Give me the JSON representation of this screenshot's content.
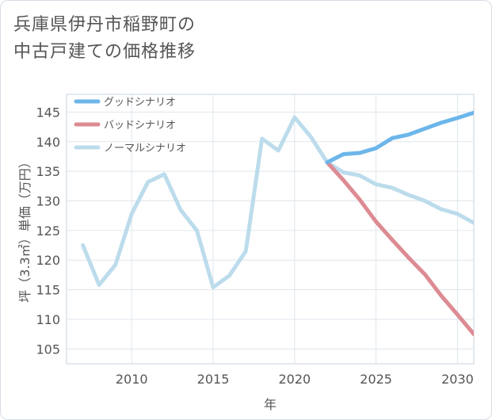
{
  "page": {
    "title_lines": [
      "兵庫県伊丹市稲野町の",
      "中古戸建ての価格推移"
    ]
  },
  "chart_data": {
    "type": "line",
    "title": "兵庫県伊丹市稲野町の中古戸建ての価格推移",
    "xlabel": "年",
    "ylabel": "坪（3.3㎡）単価（万円）",
    "xlim": [
      2006,
      2031
    ],
    "ylim": [
      102.5,
      148
    ],
    "x_ticks": [
      2010,
      2015,
      2020,
      2025,
      2030
    ],
    "y_ticks": [
      105,
      110,
      115,
      120,
      125,
      130,
      135,
      140,
      145
    ],
    "legend_position": "top-left",
    "series": [
      {
        "name": "ノーマルシナリオ",
        "color": "#bcdcec",
        "x": [
          2007,
          2008,
          2009,
          2010,
          2011,
          2012,
          2013,
          2014,
          2015,
          2016,
          2017,
          2018,
          2019,
          2020,
          2021,
          2022,
          2023,
          2024,
          2025,
          2026,
          2027,
          2028,
          2029,
          2030,
          2031
        ],
        "values": [
          122.5,
          115.8,
          119.2,
          127.8,
          133.2,
          134.5,
          128.5,
          125.0,
          115.4,
          117.4,
          121.5,
          140.5,
          138.5,
          144.1,
          140.8,
          136.5,
          134.8,
          134.3,
          132.8,
          132.2,
          131.0,
          130.0,
          128.6,
          127.8,
          126.3
        ]
      },
      {
        "name": "バッドシナリオ",
        "color": "#dd8b93",
        "x": [
          2022,
          2023,
          2024,
          2025,
          2026,
          2027,
          2028,
          2029,
          2030,
          2031
        ],
        "values": [
          136.5,
          133.5,
          130.2,
          126.5,
          123.4,
          120.4,
          117.6,
          114.0,
          110.8,
          107.5
        ]
      },
      {
        "name": "グッドシナリオ",
        "color": "#6cb6ea",
        "x": [
          2022,
          2023,
          2024,
          2025,
          2026,
          2027,
          2028,
          2029,
          2030,
          2031
        ],
        "values": [
          136.5,
          137.9,
          138.1,
          138.9,
          140.6,
          141.2,
          142.2,
          143.2,
          144.0,
          144.9
        ]
      }
    ],
    "legend": [
      "グッドシナリオ",
      "バッドシナリオ",
      "ノーマルシナリオ"
    ]
  }
}
